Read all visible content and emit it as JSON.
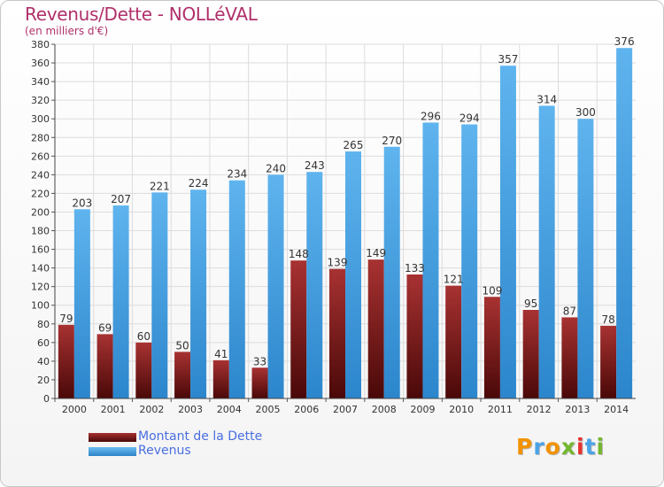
{
  "title": "Revenus/Dette - NOLLéVAL",
  "subtitle": "(en milliers d'€)",
  "legend": {
    "debt_label": "Montant de la Dette",
    "revenue_label": "Revenus"
  },
  "logo": {
    "text": "Proxiti",
    "colors": [
      "#f29200",
      "#4aa3e8",
      "#f29200",
      "#74b72e",
      "#e5322e",
      "#4aa3e8",
      "#74b72e"
    ]
  },
  "colors": {
    "debt": "#7a1a1a",
    "revenue": "#4aa6e8",
    "title": "#b0306a"
  },
  "chart_data": {
    "type": "bar",
    "title": "Revenus/Dette - NOLLéVAL",
    "ylabel": "(en milliers d'€)",
    "categories": [
      "2000",
      "2001",
      "2002",
      "2003",
      "2004",
      "2005",
      "2006",
      "2007",
      "2008",
      "2009",
      "2010",
      "2011",
      "2012",
      "2013",
      "2014"
    ],
    "series": [
      {
        "name": "Montant de la Dette",
        "values": [
          79,
          69,
          60,
          50,
          41,
          33,
          148,
          139,
          149,
          133,
          121,
          109,
          95,
          87,
          78
        ]
      },
      {
        "name": "Revenus",
        "values": [
          203,
          207,
          221,
          224,
          234,
          240,
          243,
          265,
          270,
          296,
          294,
          357,
          314,
          300,
          376
        ]
      }
    ],
    "ylim": [
      0,
      380
    ],
    "yticks": [
      0,
      20,
      40,
      60,
      80,
      100,
      120,
      140,
      160,
      180,
      200,
      220,
      240,
      260,
      280,
      300,
      320,
      340,
      360,
      380
    ],
    "grid": true,
    "legend": "bottom-left"
  }
}
